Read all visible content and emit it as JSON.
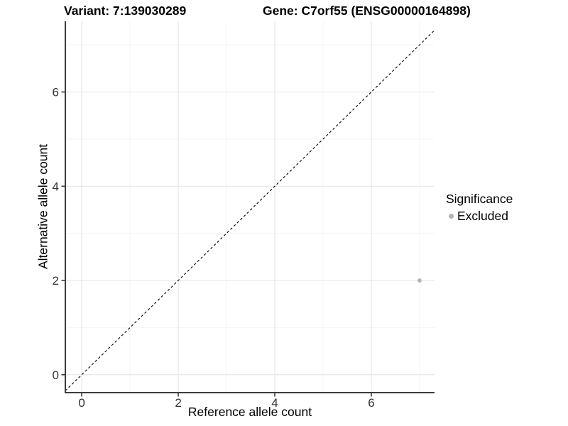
{
  "chart_data": {
    "type": "scatter",
    "titles": {
      "left": "Variant: 7:139030289",
      "right": "Gene: C7orf55 (ENSG00000164898)"
    },
    "xlabel": "Reference allele count",
    "ylabel": "Alternative allele count",
    "xlim": [
      -0.34,
      7.31
    ],
    "ylim": [
      -0.38,
      7.5
    ],
    "x_major_ticks": [
      0,
      2,
      4,
      6
    ],
    "x_minor_ticks": [
      1,
      3,
      5,
      7
    ],
    "y_major_ticks": [
      0,
      2,
      4,
      6
    ],
    "y_minor_ticks": [
      1,
      3,
      5,
      7
    ],
    "grid": {
      "major_color": "#e7e7e7",
      "minor_color": "#f4f4f4",
      "background": "#ffffff"
    },
    "axis_line_color": "#3c3c3c",
    "tick_label_color": "#333333",
    "identity_line": {
      "slope": 1,
      "intercept": 0,
      "style": "dashed",
      "color": "#000000"
    },
    "series": [
      {
        "name": "Excluded",
        "color": "#b3b3b3",
        "points": [
          {
            "x": 7,
            "y": 2
          }
        ]
      }
    ],
    "legend": {
      "title": "Significance",
      "position": "right",
      "items": [
        {
          "label": "Excluded",
          "color": "#b3b3b3"
        }
      ]
    }
  }
}
